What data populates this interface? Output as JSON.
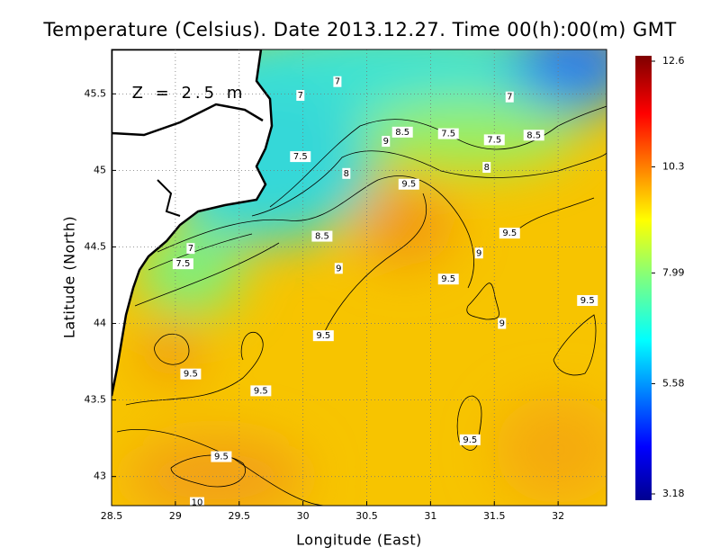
{
  "title": "Temperature (Celsius). Date 2013.12.27. Time 00(h):00(m)  GMT",
  "depth_label": "Z = 2.5 m",
  "x_axis": {
    "label": "Longitude (East)",
    "lim": [
      28.5,
      32.38
    ],
    "ticks": [
      28.5,
      29,
      29.5,
      30,
      30.5,
      31,
      31.5,
      32
    ]
  },
  "y_axis": {
    "label": "Latitude (North)",
    "lim": [
      42.81,
      45.79
    ],
    "ticks": [
      43,
      43.5,
      44,
      44.5,
      45,
      45.5
    ]
  },
  "colorbar": {
    "lim": [
      3.18,
      12.6
    ],
    "ticks": [
      3.18,
      5.58,
      7.99,
      10.3,
      12.6
    ]
  },
  "contour_labels": [
    {
      "value": 7,
      "lon": 30.27,
      "lat": 45.58
    },
    {
      "value": 7,
      "lon": 29.98,
      "lat": 45.49
    },
    {
      "value": 7,
      "lon": 31.62,
      "lat": 45.48
    },
    {
      "value": 8.5,
      "lon": 30.78,
      "lat": 45.25
    },
    {
      "value": 7.5,
      "lon": 31.14,
      "lat": 45.24
    },
    {
      "value": 7.5,
      "lon": 31.5,
      "lat": 45.2
    },
    {
      "value": 8.5,
      "lon": 31.81,
      "lat": 45.23
    },
    {
      "value": 9,
      "lon": 30.65,
      "lat": 45.19
    },
    {
      "value": 7.5,
      "lon": 29.98,
      "lat": 45.09
    },
    {
      "value": 8,
      "lon": 31.44,
      "lat": 45.02
    },
    {
      "value": 8,
      "lon": 30.34,
      "lat": 44.98
    },
    {
      "value": 9.5,
      "lon": 30.83,
      "lat": 44.91
    },
    {
      "value": 9.5,
      "lon": 31.62,
      "lat": 44.59
    },
    {
      "value": 8.5,
      "lon": 30.15,
      "lat": 44.57
    },
    {
      "value": 7,
      "lon": 29.12,
      "lat": 44.49
    },
    {
      "value": 9,
      "lon": 31.38,
      "lat": 44.46
    },
    {
      "value": 7.5,
      "lon": 29.06,
      "lat": 44.39
    },
    {
      "value": 9,
      "lon": 30.28,
      "lat": 44.36
    },
    {
      "value": 9.5,
      "lon": 31.14,
      "lat": 44.29
    },
    {
      "value": 9.5,
      "lon": 32.23,
      "lat": 44.15
    },
    {
      "value": 9,
      "lon": 31.56,
      "lat": 44.0
    },
    {
      "value": 9.5,
      "lon": 30.16,
      "lat": 43.92
    },
    {
      "value": 9.5,
      "lon": 29.12,
      "lat": 43.67
    },
    {
      "value": 9.5,
      "lon": 29.67,
      "lat": 43.56
    },
    {
      "value": 9.5,
      "lon": 31.31,
      "lat": 43.24
    },
    {
      "value": 9.5,
      "lon": 29.36,
      "lat": 43.13
    },
    {
      "value": 10,
      "lon": 29.17,
      "lat": 42.83
    }
  ]
}
